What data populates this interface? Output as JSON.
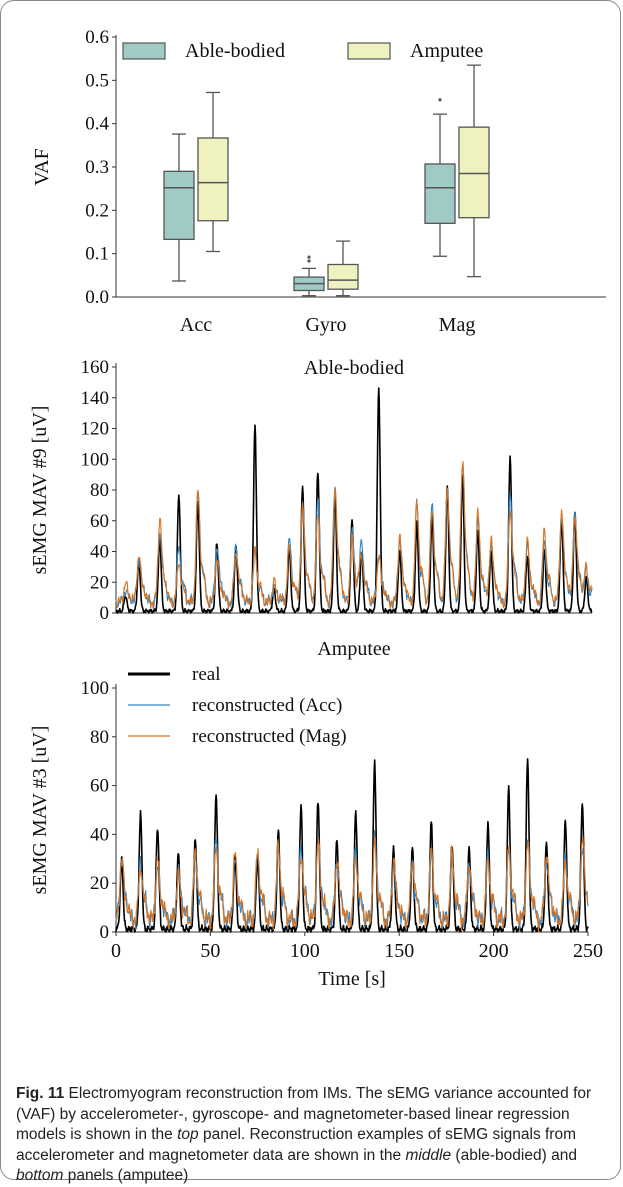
{
  "chart_data": [
    {
      "type": "box",
      "categories": [
        "Acc",
        "Gyro",
        "Mag"
      ],
      "ylabel": "VAF",
      "ylim": [
        0.0,
        0.6
      ],
      "yticks": [
        0.0,
        0.1,
        0.2,
        0.3,
        0.4,
        0.5,
        0.6
      ],
      "ytick_labels": [
        "0.0",
        "0.1",
        "0.2",
        "0.3",
        "0.4",
        "0.5",
        "0.6"
      ],
      "legend_position": "top",
      "series": [
        {
          "name": "Able-bodied",
          "color": "#9fcbc4",
          "boxes": [
            {
              "whisker_low": 0.037,
              "q1": 0.133,
              "median": 0.252,
              "q3": 0.29,
              "whisker_high": 0.376,
              "outliers": []
            },
            {
              "whisker_low": 0.003,
              "q1": 0.015,
              "median": 0.031,
              "q3": 0.046,
              "whisker_high": 0.066,
              "outliers": [
                0.083,
                0.092
              ]
            },
            {
              "whisker_low": 0.094,
              "q1": 0.17,
              "median": 0.252,
              "q3": 0.307,
              "whisker_high": 0.422,
              "outliers": [
                0.455
              ]
            }
          ]
        },
        {
          "name": "Amputee",
          "color": "#eff1bf",
          "boxes": [
            {
              "whisker_low": 0.105,
              "q1": 0.176,
              "median": 0.264,
              "q3": 0.367,
              "whisker_high": 0.472,
              "outliers": []
            },
            {
              "whisker_low": 0.003,
              "q1": 0.018,
              "median": 0.039,
              "q3": 0.075,
              "whisker_high": 0.129,
              "outliers": []
            },
            {
              "whisker_low": 0.047,
              "q1": 0.183,
              "median": 0.285,
              "q3": 0.392,
              "whisker_high": 0.535,
              "outliers": []
            }
          ]
        }
      ]
    },
    {
      "type": "line",
      "title": "Able-bodied",
      "ylabel": "sEMG MAV #9 [uV]",
      "ylim": [
        0,
        160
      ],
      "yticks": [
        0,
        20,
        40,
        60,
        80,
        100,
        120,
        140,
        160
      ],
      "xlim": [
        0,
        250
      ],
      "grid": false,
      "peak_times": [
        5,
        12,
        23,
        33,
        43,
        53,
        63,
        73,
        83,
        91,
        98,
        106,
        115,
        124,
        129,
        138,
        149,
        158,
        166,
        174,
        182,
        190,
        197,
        207,
        216,
        225,
        234,
        241,
        247
      ],
      "series": [
        {
          "name": "real",
          "color": "#000000",
          "peaks": [
            10,
            33,
            47,
            76,
            72,
            44,
            42,
            120,
            14,
            42,
            81,
            91,
            77,
            59,
            39,
            145,
            40,
            57,
            62,
            80,
            88,
            52,
            39,
            100,
            36,
            40,
            60,
            64,
            22
          ]
        },
        {
          "name": "reconstructed (Acc)",
          "color": "#2f86c6",
          "peaks": [
            8,
            28,
            45,
            35,
            70,
            36,
            36,
            32,
            10,
            40,
            62,
            65,
            75,
            46,
            37,
            32,
            40,
            62,
            63,
            72,
            91,
            54,
            38,
            70,
            38,
            37,
            55,
            58,
            20
          ]
        },
        {
          "name": "reconstructed (Mag)",
          "color": "#d9731f",
          "peaks": [
            12,
            30,
            54,
            26,
            71,
            27,
            33,
            34,
            13,
            35,
            60,
            55,
            73,
            40,
            30,
            29,
            42,
            64,
            60,
            73,
            90,
            57,
            40,
            60,
            39,
            47,
            58,
            55,
            24
          ]
        }
      ]
    },
    {
      "type": "line",
      "title": "Amputee",
      "ylabel": "sEMG MAV #3 [uV]",
      "xlabel": "Time [s]",
      "ylim": [
        0,
        100
      ],
      "yticks": [
        0,
        20,
        40,
        60,
        80,
        100
      ],
      "xlim": [
        0,
        250
      ],
      "xticks": [
        0,
        50,
        100,
        150,
        200,
        250
      ],
      "legend_position": "top-left",
      "grid": false,
      "peak_times": [
        3,
        13,
        22,
        33,
        42,
        53,
        63,
        75,
        86,
        98,
        107,
        117,
        127,
        137,
        147,
        157,
        167,
        178,
        187,
        197,
        208,
        218,
        228,
        238,
        247
      ],
      "series": [
        {
          "name": "real",
          "color": "#000000",
          "peaks": [
            28,
            47,
            42,
            31,
            37,
            55,
            30,
            30,
            40,
            50,
            53,
            37,
            48,
            68,
            33,
            33,
            44,
            35,
            33,
            43,
            58,
            69,
            35,
            44,
            52
          ]
        },
        {
          "name": "reconstructed (Acc)",
          "color": "#2f86c6",
          "peaks": [
            26,
            24,
            22,
            20,
            25,
            32,
            24,
            25,
            28,
            30,
            33,
            24,
            27,
            33,
            22,
            24,
            26,
            24,
            23,
            25,
            27,
            32,
            25,
            25,
            30
          ]
        },
        {
          "name": "reconstructed (Mag)",
          "color": "#d9731f",
          "peaks": [
            25,
            22,
            24,
            18,
            28,
            30,
            26,
            28,
            30,
            27,
            31,
            25,
            25,
            30,
            24,
            25,
            28,
            26,
            24,
            24,
            30,
            30,
            27,
            24,
            33
          ]
        }
      ]
    }
  ],
  "caption": {
    "label": "Fig. 11",
    "seg1": " Electromyogram reconstruction from IMs. The sEMG variance accounted for (VAF) by accelerometer-, gyroscope- and magnetometer-based linear regression models is shown in the ",
    "em1": "top",
    "seg2": " panel. Reconstruction examples of sEMG signals from accelerometer and magnetometer data are shown in the ",
    "em2": "middle",
    "seg3": " (able-bodied) and ",
    "em3": "bottom",
    "seg4": " panels (amputee)"
  }
}
